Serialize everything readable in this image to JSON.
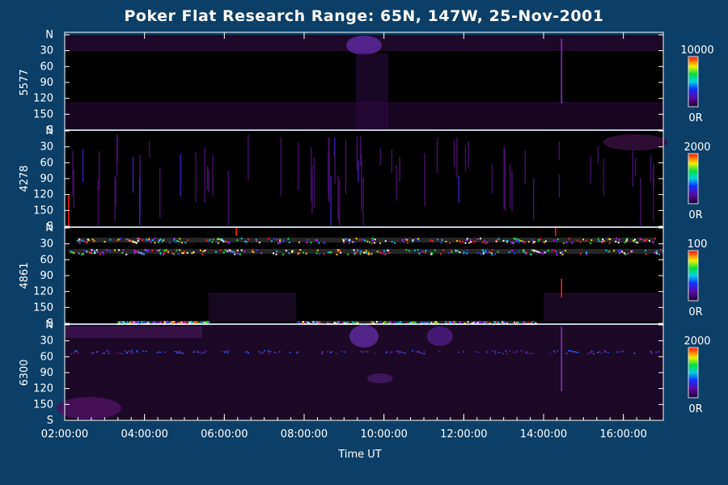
{
  "chart_data": {
    "type": "heatmap",
    "title": "Poker Flat Research Range: 65N, 147W, 25-Nov-2001",
    "xlabel": "Time UT",
    "x_ticks": [
      "02:00:00",
      "04:00:00",
      "06:00:00",
      "08:00:00",
      "10:00:00",
      "12:00:00",
      "14:00:00",
      "16:00:00"
    ],
    "x_range_hours": [
      2.0,
      17.0
    ],
    "y_tick_labels": [
      "N",
      "30",
      "60",
      "90",
      "120",
      "150",
      "S"
    ],
    "y_range_deg": [
      0,
      180
    ],
    "colormap": "rainbow (purple-blue-green-yellow-red)",
    "panels": [
      {
        "wavelength": "5577",
        "colorbar_max": "10000",
        "colorbar_min": "0R"
      },
      {
        "wavelength": "4278",
        "colorbar_max": "2000",
        "colorbar_min": "0R"
      },
      {
        "wavelength": "4861",
        "colorbar_max": "100",
        "colorbar_min": "0R"
      },
      {
        "wavelength": "6300",
        "colorbar_max": "2000",
        "colorbar_min": "0R"
      }
    ]
  },
  "colors": {
    "background": "#0b3f68",
    "panel_background": "#000000",
    "separator": "#ffffff",
    "faint_emission": "#3a0a4a"
  }
}
